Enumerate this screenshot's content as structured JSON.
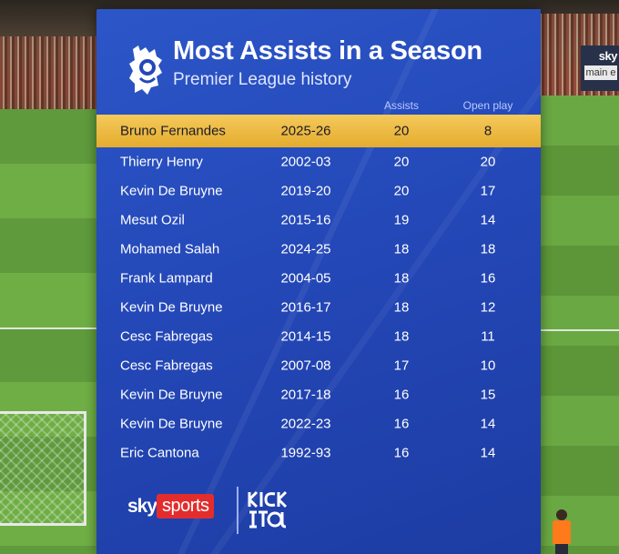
{
  "header": {
    "title": "Most Assists in a Season",
    "subtitle": "Premier League history"
  },
  "columns": {
    "assists": "Assists",
    "open_play": "Open play"
  },
  "rows": [
    {
      "name": "Bruno Fernandes",
      "season": "2025-26",
      "assists": "20",
      "open_play": "8",
      "highlight": true
    },
    {
      "name": "Thierry Henry",
      "season": "2002-03",
      "assists": "20",
      "open_play": "20"
    },
    {
      "name": "Kevin De Bruyne",
      "season": "2019-20",
      "assists": "20",
      "open_play": "17"
    },
    {
      "name": "Mesut Ozil",
      "season": "2015-16",
      "assists": "19",
      "open_play": "14"
    },
    {
      "name": "Mohamed Salah",
      "season": "2024-25",
      "assists": "18",
      "open_play": "18"
    },
    {
      "name": "Frank Lampard",
      "season": "2004-05",
      "assists": "18",
      "open_play": "16"
    },
    {
      "name": "Kevin De Bruyne",
      "season": "2016-17",
      "assists": "18",
      "open_play": "12"
    },
    {
      "name": "Cesc Fabregas",
      "season": "2014-15",
      "assists": "18",
      "open_play": "11"
    },
    {
      "name": "Cesc Fabregas",
      "season": "2007-08",
      "assists": "17",
      "open_play": "10"
    },
    {
      "name": "Kevin De Bruyne",
      "season": "2017-18",
      "assists": "16",
      "open_play": "15"
    },
    {
      "name": "Kevin De Bruyne",
      "season": "2022-23",
      "assists": "16",
      "open_play": "14"
    },
    {
      "name": "Eric Cantona",
      "season": "1992-93",
      "assists": "16",
      "open_play": "14"
    }
  ],
  "footer": {
    "sky": "sky",
    "sports": "sports",
    "kickit": "KICK IT OUT"
  },
  "background": {
    "right_logo": "sky",
    "right_sub": "main e"
  },
  "colors": {
    "board": "#2448b8",
    "highlight": "#f0bd45",
    "sky_sports_red": "#e32d2d"
  }
}
